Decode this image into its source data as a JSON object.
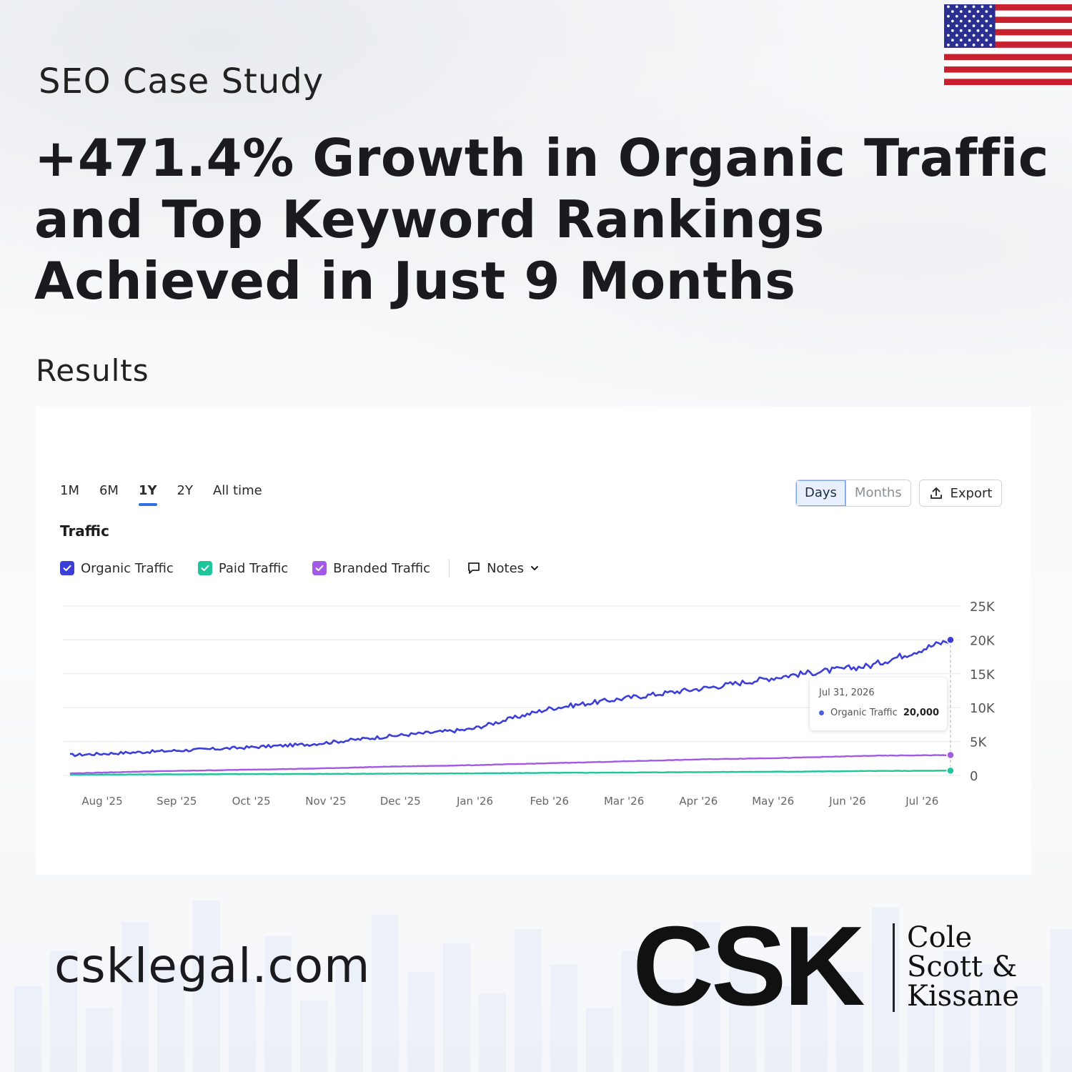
{
  "page": {
    "subtitle": "SEO Case Study",
    "headline_lines": [
      "+471.4% Growth in Organic Traffic",
      "and Top Keyword Rankings",
      "Achieved in Just 9 Months"
    ],
    "results_label": "Results",
    "website": "csklegal.com",
    "logo": {
      "mark": "CSK",
      "firm_lines": [
        "Cole",
        "Scott &",
        "Kissane"
      ]
    },
    "flag_icon": "us-flag-icon"
  },
  "chart_ui": {
    "periods": [
      "1M",
      "6M",
      "1Y",
      "2Y",
      "All time"
    ],
    "active_period": "1Y",
    "granularity": [
      "Days",
      "Months"
    ],
    "active_granularity": "Days",
    "export_label": "Export",
    "title": "Traffic",
    "notes_label": "Notes",
    "tooltip": {
      "date": "Jul 31, 2026",
      "series": "Organic Traffic",
      "value": "20,000"
    }
  },
  "chart_data": {
    "type": "line",
    "title": "Traffic",
    "x": [
      "Aug '25",
      "Sep '25",
      "Oct '25",
      "Nov '25",
      "Dec '25",
      "Jan '26",
      "Feb '26",
      "Mar '26",
      "Apr '26",
      "May '26",
      "Jun '26",
      "Jul '26"
    ],
    "y_ticks": [
      "0",
      "5K",
      "10K",
      "15K",
      "20K",
      "25K"
    ],
    "ylim": [
      0,
      25000
    ],
    "grid": true,
    "legend_position": "top-left",
    "series": [
      {
        "name": "Organic Traffic",
        "color": "#3b3fd8",
        "values": [
          3000,
          3500,
          4000,
          4600,
          5800,
          6800,
          9900,
          11500,
          13000,
          14800,
          16200,
          20000
        ]
      },
      {
        "name": "Paid Traffic",
        "color": "#1fc59a",
        "values": [
          100,
          150,
          200,
          220,
          260,
          300,
          380,
          430,
          500,
          560,
          650,
          700
        ]
      },
      {
        "name": "Branded Traffic",
        "color": "#a259e6",
        "values": [
          300,
          600,
          800,
          1000,
          1300,
          1500,
          1800,
          2100,
          2400,
          2600,
          2900,
          3000
        ]
      }
    ]
  }
}
